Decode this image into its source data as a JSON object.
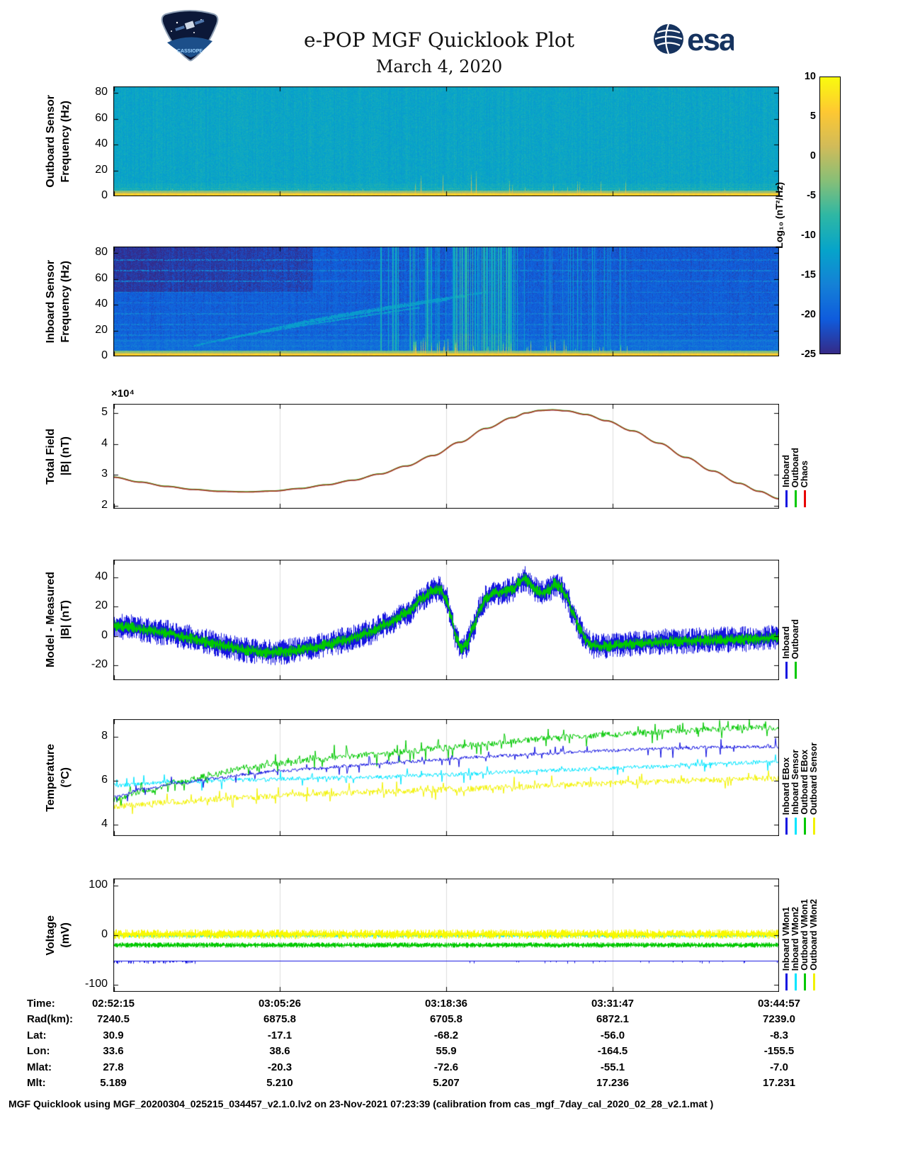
{
  "header": {
    "title": "e-POP MGF Quicklook Plot",
    "date": "March 4, 2020",
    "esa_logo_text": "esa",
    "mission_name": "CASSIOPE"
  },
  "offset_label": "×10⁴",
  "colorbar": {
    "label": "Log₁₀ (nT²/Hz)",
    "ticks": [
      10,
      5,
      0,
      -5,
      -10,
      -15,
      -20,
      -25
    ],
    "max": 10,
    "min": -25,
    "colormap": [
      "#352a87",
      "#0f5cdd",
      "#1481d6",
      "#06a4ca",
      "#2eb7a4",
      "#87bf77",
      "#d1bb59",
      "#fec832",
      "#f9fb0e"
    ]
  },
  "chart_data": [
    {
      "id": "outboard-spectrogram",
      "type": "heatmap",
      "ylabel_line1": "Outboard Sensor",
      "ylabel_line2": "Frequency (Hz)",
      "ylim": [
        0,
        85
      ],
      "yticks": [
        0,
        20,
        40,
        60,
        80
      ],
      "x_ticks": [
        "02:52:15",
        "03:05:26",
        "03:18:36",
        "03:31:47",
        "03:44:57"
      ],
      "value_range": [
        -25,
        10
      ],
      "description": "Broadband power spectral density; uniform ~-12 background, intense band below ~3 Hz, impulsive low-frequency spikes between 03:15 and 03:35",
      "seed": 42,
      "base": -11.5,
      "column_noise": 1.6,
      "pixel_noise": 3.2,
      "low_boost": [
        10,
        1.0
      ],
      "band_cut": 2.2,
      "band_level": 6.5,
      "band_fade": 4.6,
      "fade_level": -4,
      "hlines": [
        6
      ],
      "hline_boost": 4,
      "spike_zones": [
        [
          0.05,
          0.45,
          0.015,
          8
        ],
        [
          0.45,
          0.62,
          0.12,
          22
        ],
        [
          0.62,
          0.78,
          0.1,
          14
        ],
        [
          0.78,
          0.99,
          0.03,
          7
        ]
      ],
      "streak_zones": []
    },
    {
      "id": "inboard-spectrogram",
      "type": "heatmap",
      "ylabel_line1": "Inboard Sensor",
      "ylabel_line2": "Frequency (Hz)",
      "ylim": [
        0,
        85
      ],
      "yticks": [
        0,
        20,
        40,
        60,
        80
      ],
      "x_ticks": [
        "02:52:15",
        "03:05:26",
        "03:18:36",
        "03:31:47",
        "03:44:57"
      ],
      "value_range": [
        -25,
        10
      ],
      "description": "Darker ~-19 background, harmonic horizontal interference lines, rising tone arcs on left half, vertical broadband streaks 03:15-03:35, intense band below ~3 Hz",
      "seed": 1337,
      "base": -19.5,
      "column_noise": 1.8,
      "pixel_noise": 3.6,
      "vert_grad": 0.015,
      "low_boost": [
        14,
        1.2
      ],
      "band_cut": 2.2,
      "band_level": 6.0,
      "band_fade": 4.8,
      "fade_level": -5,
      "hlines": [
        8.3,
        12.5,
        16.6,
        20.8,
        25,
        33.3,
        41.6,
        50,
        58.3,
        66.6,
        75
      ],
      "hline_boost": 3.5,
      "arcs": [
        [
          0.16,
          12,
          0.5,
          44
        ],
        [
          0.21,
          18,
          0.53,
          47
        ],
        [
          0.26,
          24,
          0.56,
          50
        ],
        [
          0.12,
          8,
          0.46,
          38
        ]
      ],
      "arc_level": -13,
      "spike_zones": [
        [
          0.45,
          0.68,
          0.18,
          16
        ],
        [
          0.68,
          0.8,
          0.1,
          10
        ],
        [
          0.85,
          0.99,
          0.04,
          6
        ]
      ],
      "streak_zones": [
        [
          0.4,
          0.62,
          0.2,
          -15,
          6
        ],
        [
          0.5,
          0.6,
          0.35,
          -12,
          5
        ],
        [
          0.62,
          0.78,
          0.12,
          -16,
          5
        ]
      ],
      "dark_topleft": true
    },
    {
      "id": "total-field",
      "type": "line",
      "ylabel_line1": "Total Field",
      "ylabel_line2": "|B| (nT)",
      "offset_text": "×10⁴",
      "ylim": [
        1.9,
        5.3
      ],
      "yticks": [
        2,
        3,
        4,
        5
      ],
      "x_ticks": [
        "02:52:15",
        "03:05:26",
        "03:18:36",
        "03:31:47",
        "03:44:57"
      ],
      "seed": 7,
      "grid": [
        0.25,
        0.5,
        0.75
      ],
      "legend": [
        {
          "label": "Inboard",
          "color": "#1414e0"
        },
        {
          "label": "Outboard",
          "color": "#00c800"
        },
        {
          "label": "Chaos",
          "color": "#e80000"
        }
      ],
      "base_points": [
        [
          0,
          2.92
        ],
        [
          0.04,
          2.76
        ],
        [
          0.08,
          2.62
        ],
        [
          0.12,
          2.52
        ],
        [
          0.16,
          2.46
        ],
        [
          0.2,
          2.44
        ],
        [
          0.24,
          2.47
        ],
        [
          0.28,
          2.55
        ],
        [
          0.32,
          2.67
        ],
        [
          0.36,
          2.82
        ],
        [
          0.4,
          3.02
        ],
        [
          0.44,
          3.28
        ],
        [
          0.48,
          3.62
        ],
        [
          0.52,
          4.05
        ],
        [
          0.56,
          4.5
        ],
        [
          0.6,
          4.85
        ],
        [
          0.62,
          5.0
        ],
        [
          0.64,
          5.08
        ],
        [
          0.66,
          5.1
        ],
        [
          0.68,
          5.07
        ],
        [
          0.71,
          4.95
        ],
        [
          0.74,
          4.75
        ],
        [
          0.78,
          4.42
        ],
        [
          0.82,
          4.02
        ],
        [
          0.86,
          3.56
        ],
        [
          0.9,
          3.12
        ],
        [
          0.94,
          2.72
        ],
        [
          0.97,
          2.46
        ],
        [
          1,
          2.22
        ]
      ],
      "series": [
        {
          "name": "Inboard",
          "color": "#1414e0",
          "style": "smooth",
          "width": 1
        },
        {
          "name": "Outboard",
          "color": "#00c800",
          "style": "smooth",
          "width": 1,
          "offset": 0.015
        },
        {
          "name": "Chaos",
          "color": "#a83a22",
          "style": "smooth",
          "width": 1.7
        }
      ]
    },
    {
      "id": "model-measured",
      "type": "line",
      "ylabel_line1": "Model - Measured",
      "ylabel_line2": "|B| (nT)",
      "ylim": [
        -30,
        52
      ],
      "yticks": [
        -20,
        0,
        20,
        40
      ],
      "x_ticks": [
        "02:52:15",
        "03:05:26",
        "03:18:36",
        "03:31:47",
        "03:44:57"
      ],
      "seed": 99,
      "grid": [
        0.25,
        0.5,
        0.75
      ],
      "legend": [
        {
          "label": "Inboard",
          "color": "#1414e0"
        },
        {
          "label": "Outboard",
          "color": "#00c800"
        }
      ],
      "base_points": [
        [
          0,
          7
        ],
        [
          0.02,
          6
        ],
        [
          0.05,
          4
        ],
        [
          0.08,
          2
        ],
        [
          0.11,
          -1
        ],
        [
          0.14,
          -4
        ],
        [
          0.17,
          -7
        ],
        [
          0.2,
          -9.5
        ],
        [
          0.23,
          -11
        ],
        [
          0.26,
          -10.5
        ],
        [
          0.29,
          -8.5
        ],
        [
          0.32,
          -6
        ],
        [
          0.35,
          -2.5
        ],
        [
          0.38,
          2
        ],
        [
          0.41,
          8
        ],
        [
          0.44,
          16
        ],
        [
          0.465,
          26
        ],
        [
          0.48,
          31
        ],
        [
          0.49,
          32
        ],
        [
          0.5,
          25
        ],
        [
          0.507,
          12
        ],
        [
          0.515,
          -2
        ],
        [
          0.522,
          -8
        ],
        [
          0.53,
          -6
        ],
        [
          0.54,
          6
        ],
        [
          0.55,
          18
        ],
        [
          0.56,
          26
        ],
        [
          0.57,
          29
        ],
        [
          0.585,
          30
        ],
        [
          0.6,
          32
        ],
        [
          0.61,
          37
        ],
        [
          0.617,
          39
        ],
        [
          0.625,
          36
        ],
        [
          0.635,
          31
        ],
        [
          0.645,
          29
        ],
        [
          0.655,
          32
        ],
        [
          0.663,
          36
        ],
        [
          0.67,
          34
        ],
        [
          0.68,
          27
        ],
        [
          0.69,
          16
        ],
        [
          0.7,
          5
        ],
        [
          0.71,
          -3
        ],
        [
          0.72,
          -6.5
        ],
        [
          0.74,
          -7
        ],
        [
          0.77,
          -5.5
        ],
        [
          0.8,
          -4.5
        ],
        [
          0.84,
          -3.5
        ],
        [
          0.88,
          -3
        ],
        [
          0.92,
          -2.5
        ],
        [
          0.96,
          -2
        ],
        [
          1,
          -1
        ]
      ],
      "series": [
        {
          "name": "Inboard",
          "color": "#1414e0",
          "style": "band",
          "amp0": 2.5,
          "amp1": 6.5
        },
        {
          "name": "Outboard",
          "color": "#00c800",
          "style": "band",
          "amp0": 0.6,
          "amp1": 3.4
        }
      ]
    },
    {
      "id": "temperature",
      "type": "line",
      "ylabel_line1": "Temperature",
      "ylabel_line2": "(°C)",
      "ylim": [
        3.5,
        8.8
      ],
      "yticks": [
        4,
        6,
        8
      ],
      "x_ticks": [
        "02:52:15",
        "03:05:26",
        "03:18:36",
        "03:31:47",
        "03:44:57"
      ],
      "seed": 55,
      "grid": [
        0.25,
        0.5,
        0.75
      ],
      "legend": [
        {
          "label": "Inboard EBox",
          "color": "#1414e0"
        },
        {
          "label": "Inboard Sensor",
          "color": "#00e5ff"
        },
        {
          "label": "Outboard EBox",
          "color": "#00c800"
        },
        {
          "label": "Outboard Sensor",
          "color": "#f2f200"
        }
      ],
      "series": [
        {
          "name": "Outboard Sensor",
          "color": "#f2f200",
          "style": "noisy",
          "amp": 0.13,
          "spike_p": 0.1,
          "spike_amp": 0.4,
          "points": [
            [
              0,
              4.85
            ],
            [
              0.1,
              5.05
            ],
            [
              0.2,
              5.25
            ],
            [
              0.3,
              5.4
            ],
            [
              0.4,
              5.5
            ],
            [
              0.5,
              5.6
            ],
            [
              0.6,
              5.72
            ],
            [
              0.7,
              5.85
            ],
            [
              0.8,
              5.95
            ],
            [
              0.9,
              6.05
            ],
            [
              1,
              6.12
            ]
          ]
        },
        {
          "name": "Inboard Sensor",
          "color": "#00e5ff",
          "style": "noisy",
          "amp": 0.09,
          "spike_p": 0.08,
          "spike_amp": 0.35,
          "points": [
            [
              0,
              5.8
            ],
            [
              0.1,
              5.95
            ],
            [
              0.2,
              6.05
            ],
            [
              0.3,
              6.12
            ],
            [
              0.4,
              6.18
            ],
            [
              0.5,
              6.28
            ],
            [
              0.6,
              6.4
            ],
            [
              0.7,
              6.52
            ],
            [
              0.8,
              6.64
            ],
            [
              0.9,
              6.76
            ],
            [
              1,
              6.88
            ]
          ]
        },
        {
          "name": "Outboard EBox",
          "color": "#00c800",
          "style": "noisy",
          "amp": 0.13,
          "spike_p": 0.12,
          "spike_amp": 0.45,
          "points": [
            [
              0,
              5.15
            ],
            [
              0.05,
              5.55
            ],
            [
              0.1,
              5.95
            ],
            [
              0.15,
              6.3
            ],
            [
              0.2,
              6.6
            ],
            [
              0.25,
              6.8
            ],
            [
              0.3,
              6.95
            ],
            [
              0.35,
              7.1
            ],
            [
              0.4,
              7.2
            ],
            [
              0.45,
              7.35
            ],
            [
              0.5,
              7.5
            ],
            [
              0.55,
              7.65
            ],
            [
              0.6,
              7.8
            ],
            [
              0.65,
              7.92
            ],
            [
              0.7,
              8.02
            ],
            [
              0.75,
              8.1
            ],
            [
              0.8,
              8.2
            ],
            [
              0.85,
              8.28
            ],
            [
              0.9,
              8.35
            ],
            [
              0.95,
              8.4
            ],
            [
              1,
              8.42
            ]
          ]
        },
        {
          "name": "Inboard EBox",
          "color": "#1414e0",
          "style": "noisy",
          "amp": 0.07,
          "spike_p": 0.07,
          "spike_amp": 0.4,
          "points": [
            [
              0,
              5.3
            ],
            [
              0.05,
              5.65
            ],
            [
              0.1,
              5.9
            ],
            [
              0.15,
              6.1
            ],
            [
              0.2,
              6.3
            ],
            [
              0.25,
              6.45
            ],
            [
              0.3,
              6.55
            ],
            [
              0.35,
              6.67
            ],
            [
              0.4,
              6.78
            ],
            [
              0.45,
              6.88
            ],
            [
              0.5,
              6.98
            ],
            [
              0.55,
              7.08
            ],
            [
              0.6,
              7.16
            ],
            [
              0.65,
              7.24
            ],
            [
              0.7,
              7.32
            ],
            [
              0.75,
              7.38
            ],
            [
              0.8,
              7.44
            ],
            [
              0.85,
              7.48
            ],
            [
              0.9,
              7.52
            ],
            [
              0.95,
              7.55
            ],
            [
              1,
              7.55
            ]
          ]
        }
      ]
    },
    {
      "id": "voltage",
      "type": "line",
      "ylabel_line1": "Voltage",
      "ylabel_line2": "(mV)",
      "ylim": [
        -115,
        115
      ],
      "yticks": [
        -100,
        0,
        100
      ],
      "x_ticks": [
        "02:52:15",
        "03:05:26",
        "03:18:36",
        "03:31:47",
        "03:44:57"
      ],
      "seed": 77,
      "grid": [
        0.25,
        0.5,
        0.75
      ],
      "legend": [
        {
          "label": "Inboard VMon1",
          "color": "#1414e0"
        },
        {
          "label": "Inboard VMon2",
          "color": "#00e5ff"
        },
        {
          "label": "Outboard VMon1",
          "color": "#00c800"
        },
        {
          "label": "Outboard VMon2",
          "color": "#f2f200"
        }
      ],
      "series": [
        {
          "name": "Inboard VMon2",
          "color": "#00e5ff",
          "style": "band",
          "level": -1,
          "amp0": 0.5,
          "amp1": 3
        },
        {
          "name": "Outboard VMon2",
          "color": "#f8f800",
          "style": "band",
          "level": 2,
          "amp0": 1.5,
          "amp1": 8.5
        },
        {
          "name": "Outboard VMon1",
          "color": "#00c800",
          "style": "band",
          "level": -20,
          "amp0": 1,
          "amp1": 4.5
        },
        {
          "name": "Inboard VMon1",
          "color": "#1414e0",
          "style": "flat",
          "level": -52,
          "spike_amp": 6,
          "zones": [
            [
              0,
              0.13,
              0.35
            ],
            [
              0.48,
              1,
              0.06
            ]
          ]
        }
      ]
    }
  ],
  "axis_table": {
    "row_labels": [
      "Time:",
      "Rad(km):",
      "Lat:",
      "Lon:",
      "Mlat:",
      "Mlt:"
    ],
    "rows": [
      [
        "02:52:15",
        "03:05:26",
        "03:18:36",
        "03:31:47",
        "03:44:57"
      ],
      [
        "7240.5",
        "6875.8",
        "6705.8",
        "6872.1",
        "7239.0"
      ],
      [
        "30.9",
        "-17.1",
        "-68.2",
        "-56.0",
        "-8.3"
      ],
      [
        "33.6",
        "38.6",
        "55.9",
        "-164.5",
        "-155.5"
      ],
      [
        "27.8",
        "-20.3",
        "-72.6",
        "-55.1",
        "-7.0"
      ],
      [
        "5.189",
        "5.210",
        "5.207",
        "17.236",
        "17.231"
      ]
    ]
  },
  "footer": "MGF Quicklook using MGF_20200304_025215_034457_v2.1.0.lv2 on 23-Nov-2021 07:23:39 (calibration from cas_mgf_7day_cal_2020_02_28_v2.1.mat )"
}
